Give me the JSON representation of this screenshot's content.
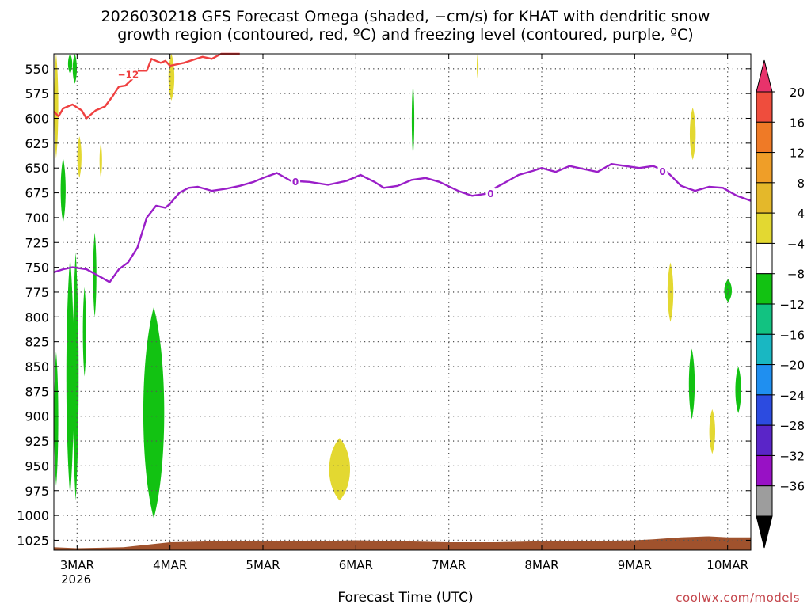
{
  "chart_data": {
    "type": "heatmap",
    "title": "2026030218 GFS Forecast Omega (shaded, −cm/s) for KHAT with dendritic snow",
    "subtitle": "growth region (contoured, red, ºC) and freezing level (contoured, purple, ºC)",
    "xlabel": "Forecast Time (UTC)",
    "ylabel": "",
    "x_start_label": "2026",
    "x_ticks": [
      "3MAR",
      "4MAR",
      "5MAR",
      "6MAR",
      "7MAR",
      "8MAR",
      "9MAR",
      "10MAR"
    ],
    "x_tick_days": [
      0,
      1,
      2,
      3,
      4,
      5,
      6,
      7
    ],
    "xlim_days": [
      -0.25,
      7.25
    ],
    "y_ticks": [
      550,
      575,
      600,
      625,
      650,
      675,
      700,
      725,
      750,
      775,
      800,
      825,
      850,
      875,
      900,
      925,
      950,
      975,
      1000,
      1025
    ],
    "ylim_hpa": [
      535,
      1035
    ],
    "grid": true,
    "colorbar": {
      "labels": [
        "20",
        "16",
        "12",
        "8",
        "4",
        "−4",
        "−8",
        "−12",
        "−16",
        "−20",
        "−24",
        "−28",
        "−32",
        "−36"
      ],
      "colors": [
        "#e8336b",
        "#ef4d3d",
        "#ef7a26",
        "#ef9e28",
        "#e4b82a",
        "#e3d831",
        "#ffffff",
        "#12c212",
        "#12c281",
        "#19b7c2",
        "#1f8ff0",
        "#2c4be0",
        "#5a25c8",
        "#9811c5",
        "#9d9d9d",
        "#000000"
      ]
    },
    "freezing_level": {
      "label": "0",
      "color": "#9a1ec8",
      "x": [
        -0.25,
        -0.15,
        -0.05,
        0.1,
        0.2,
        0.35,
        0.45,
        0.55,
        0.65,
        0.75,
        0.85,
        0.95,
        1.0,
        1.1,
        1.2,
        1.3,
        1.45,
        1.6,
        1.75,
        1.9,
        2.0,
        2.15,
        2.3,
        2.5,
        2.7,
        2.9,
        3.05,
        3.2,
        3.3,
        3.45,
        3.6,
        3.75,
        3.9,
        4.1,
        4.25,
        4.4,
        4.5,
        4.6,
        4.75,
        4.9,
        5.0,
        5.15,
        5.3,
        5.45,
        5.6,
        5.75,
        5.9,
        6.05,
        6.2,
        6.35,
        6.5,
        6.65,
        6.8,
        6.95,
        7.1,
        7.25
      ],
      "y": [
        755,
        752,
        750,
        752,
        757,
        765,
        752,
        745,
        730,
        700,
        688,
        690,
        686,
        675,
        670,
        669,
        673,
        671,
        668,
        664,
        660,
        655,
        663,
        664,
        667,
        663,
        657,
        664,
        670,
        668,
        662,
        660,
        664,
        673,
        678,
        676,
        670,
        665,
        657,
        653,
        650,
        654,
        648,
        651,
        654,
        646,
        648,
        650,
        648,
        654,
        668,
        673,
        669,
        670,
        678,
        683
      ],
      "label_positions": [
        [
          2.35,
          664
        ],
        [
          4.45,
          676
        ],
        [
          6.3,
          654
        ]
      ]
    },
    "dendritic_contour": {
      "label": "−12",
      "color": "#ef4040",
      "x": [
        -0.25,
        -0.2,
        -0.15,
        -0.05,
        0.05,
        0.1,
        0.2,
        0.3,
        0.38,
        0.45,
        0.52,
        0.6,
        0.65,
        0.75,
        0.8,
        0.9,
        0.95,
        1.0,
        1.15,
        1.25,
        1.35,
        1.45,
        1.55,
        1.65,
        1.75
      ],
      "y": [
        593,
        598,
        590,
        586,
        592,
        600,
        592,
        588,
        578,
        568,
        567,
        560,
        552,
        552,
        540,
        544,
        542,
        547,
        544,
        541,
        538,
        540,
        534,
        532,
        535
      ],
      "label_position": [
        0.55,
        556
      ]
    },
    "omega_shaded": [
      {
        "sign": "negative",
        "color": "#12c212",
        "x": [
          0.7,
          0.95
        ],
        "y": [
          790,
          1003
        ]
      },
      {
        "sign": "negative",
        "color": "#12c212",
        "x": [
          -0.12,
          -0.03
        ],
        "y": [
          740,
          980
        ]
      },
      {
        "sign": "negative",
        "color": "#12c212",
        "x": [
          -0.18,
          -0.12
        ],
        "y": [
          640,
          705
        ]
      },
      {
        "sign": "negative",
        "color": "#12c212",
        "x": [
          -0.25,
          -0.2
        ],
        "y": [
          835,
          970
        ]
      },
      {
        "sign": "negative",
        "color": "#12c212",
        "x": [
          -0.05,
          0.02
        ],
        "y": [
          735,
          985
        ]
      },
      {
        "sign": "negative",
        "color": "#12c212",
        "x": [
          0.06,
          0.1
        ],
        "y": [
          770,
          860
        ]
      },
      {
        "sign": "negative",
        "color": "#12c212",
        "x": [
          0.17,
          0.21
        ],
        "y": [
          715,
          800
        ]
      },
      {
        "sign": "negative",
        "color": "#12c212",
        "x": [
          -0.1,
          -0.05
        ],
        "y": [
          530,
          555
        ]
      },
      {
        "sign": "negative",
        "color": "#12c212",
        "x": [
          -0.05,
          0.0
        ],
        "y": [
          530,
          565
        ]
      },
      {
        "sign": "negative",
        "color": "#12c212",
        "x": [
          3.6,
          3.63
        ],
        "y": [
          565,
          638
        ]
      },
      {
        "sign": "negative",
        "color": "#12c212",
        "x": [
          6.58,
          6.65
        ],
        "y": [
          832,
          903
        ]
      },
      {
        "sign": "negative",
        "color": "#12c212",
        "x": [
          6.96,
          7.05
        ],
        "y": [
          762,
          785
        ]
      },
      {
        "sign": "negative",
        "color": "#12c212",
        "x": [
          7.08,
          7.15
        ],
        "y": [
          850,
          897
        ]
      },
      {
        "sign": "positive",
        "color": "#e3d831",
        "x": [
          -0.25,
          -0.2
        ],
        "y": [
          535,
          640
        ]
      },
      {
        "sign": "positive",
        "color": "#e3d831",
        "x": [
          0.0,
          0.05
        ],
        "y": [
          618,
          660
        ]
      },
      {
        "sign": "positive",
        "color": "#e3d831",
        "x": [
          0.24,
          0.27
        ],
        "y": [
          625,
          660
        ]
      },
      {
        "sign": "positive",
        "color": "#e3d831",
        "x": [
          2.7,
          2.95
        ],
        "y": [
          922,
          985
        ]
      },
      {
        "sign": "positive",
        "color": "#e3d831",
        "x": [
          0.98,
          1.05
        ],
        "y": [
          530,
          582
        ]
      },
      {
        "sign": "positive",
        "color": "#e3d831",
        "x": [
          6.35,
          6.42
        ],
        "y": [
          745,
          805
        ]
      },
      {
        "sign": "positive",
        "color": "#e3d831",
        "x": [
          6.59,
          6.66
        ],
        "y": [
          589,
          642
        ]
      },
      {
        "sign": "positive",
        "color": "#e3d831",
        "x": [
          6.8,
          6.87
        ],
        "y": [
          893,
          938
        ]
      },
      {
        "sign": "positive",
        "color": "#e3d831",
        "x": [
          4.3,
          4.32
        ],
        "y": [
          535,
          560
        ]
      }
    ],
    "terrain": {
      "color": "#a0522d",
      "x": [
        -0.25,
        0.0,
        0.5,
        1.0,
        1.5,
        2.0,
        2.5,
        3.0,
        3.5,
        4.0,
        4.5,
        5.0,
        5.5,
        6.0,
        6.2,
        6.5,
        6.8,
        7.0,
        7.25
      ],
      "y": [
        1032,
        1033,
        1032,
        1027,
        1026,
        1026,
        1026,
        1025,
        1026,
        1027,
        1027,
        1026,
        1026,
        1025,
        1024,
        1022,
        1021,
        1022,
        1022
      ]
    }
  },
  "page": {
    "credit": "coolwx.com/models"
  }
}
